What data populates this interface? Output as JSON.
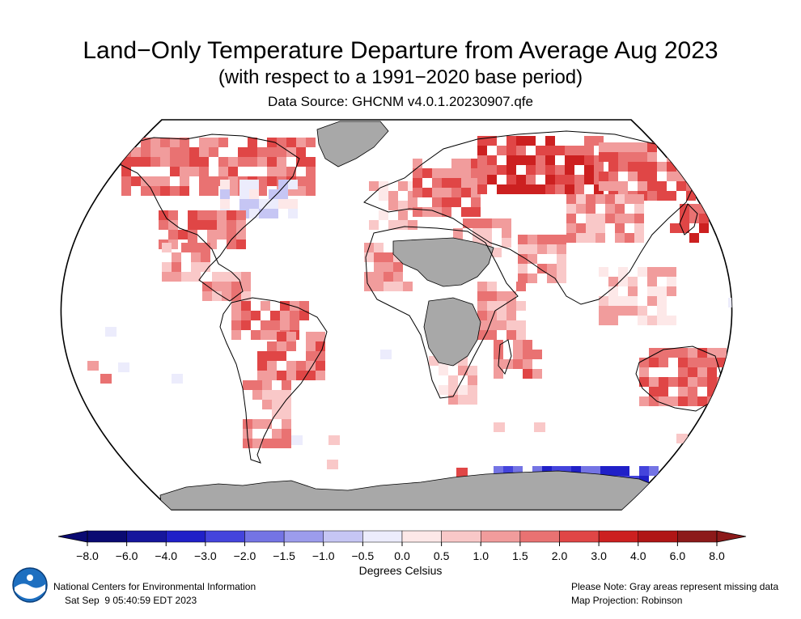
{
  "header": {
    "title": "Land−Only Temperature Departure from Average Aug 2023",
    "subtitle": "(with respect to a 1991−2020 base period)",
    "source": "Data Source: GHCNM v4.0.1.20230907.qfe"
  },
  "map": {
    "projection_label": "Map Projection: Robinson",
    "missing_note": "Please Note: Gray areas represent missing data",
    "missing_color": "#a8a8a8",
    "land_regions": [
      "Greenland",
      "Antarctica",
      "North Africa / Sahara",
      "Sahel",
      "Central Africa"
    ],
    "regional_anomalies": [
      {
        "region": "Canada",
        "level": 3
      },
      {
        "region": "Eastern North America",
        "level": -1
      },
      {
        "region": "Southern United States",
        "level": 3
      },
      {
        "region": "Mexico",
        "level": 2
      },
      {
        "region": "Central America",
        "level": 2
      },
      {
        "region": "Northern South America",
        "level": 3
      },
      {
        "region": "Brazil",
        "level": 3
      },
      {
        "region": "Argentina",
        "level": 2
      },
      {
        "region": "Western Europe",
        "level": 1
      },
      {
        "region": "Eastern Europe",
        "level": 3
      },
      {
        "region": "Siberia",
        "level": 4
      },
      {
        "region": "Eastern Russia",
        "level": 3
      },
      {
        "region": "Middle East",
        "level": 2
      },
      {
        "region": "South Asia",
        "level": 2
      },
      {
        "region": "China",
        "level": 2
      },
      {
        "region": "Japan",
        "level": 4
      },
      {
        "region": "Southeast Asia",
        "level": 1
      },
      {
        "region": "West Africa",
        "level": 2
      },
      {
        "region": "East Africa",
        "level": 2
      },
      {
        "region": "Southern Africa",
        "level": 1
      },
      {
        "region": "Madagascar",
        "level": 3
      },
      {
        "region": "Australia",
        "level": 3
      },
      {
        "region": "New Zealand",
        "level": -2
      },
      {
        "region": "East Antarctica coast",
        "level": -5
      }
    ]
  },
  "legend": {
    "units": "Degrees Celsius",
    "tick_labels": [
      "−8.0",
      "−6.0",
      "−4.0",
      "−3.0",
      "−2.0",
      "−1.5",
      "−1.0",
      "−0.5",
      "0.0",
      "0.5",
      "1.0",
      "1.5",
      "2.0",
      "3.0",
      "4.0",
      "6.0",
      "8.0"
    ],
    "colors": [
      "#0a0a72",
      "#16169c",
      "#2020c8",
      "#4444dc",
      "#7474e4",
      "#9c9cec",
      "#c6c6f4",
      "#ececfc",
      "#fde8e8",
      "#f9c8c8",
      "#f19c9c",
      "#e97272",
      "#e04646",
      "#cc2020",
      "#b01616",
      "#8c1a1a"
    ]
  },
  "footer": {
    "agency": "National Centers for Environmental Information",
    "timestamp": "Sat Sep  9 05:40:59 EDT 2023",
    "logo_text": "NOAA"
  }
}
